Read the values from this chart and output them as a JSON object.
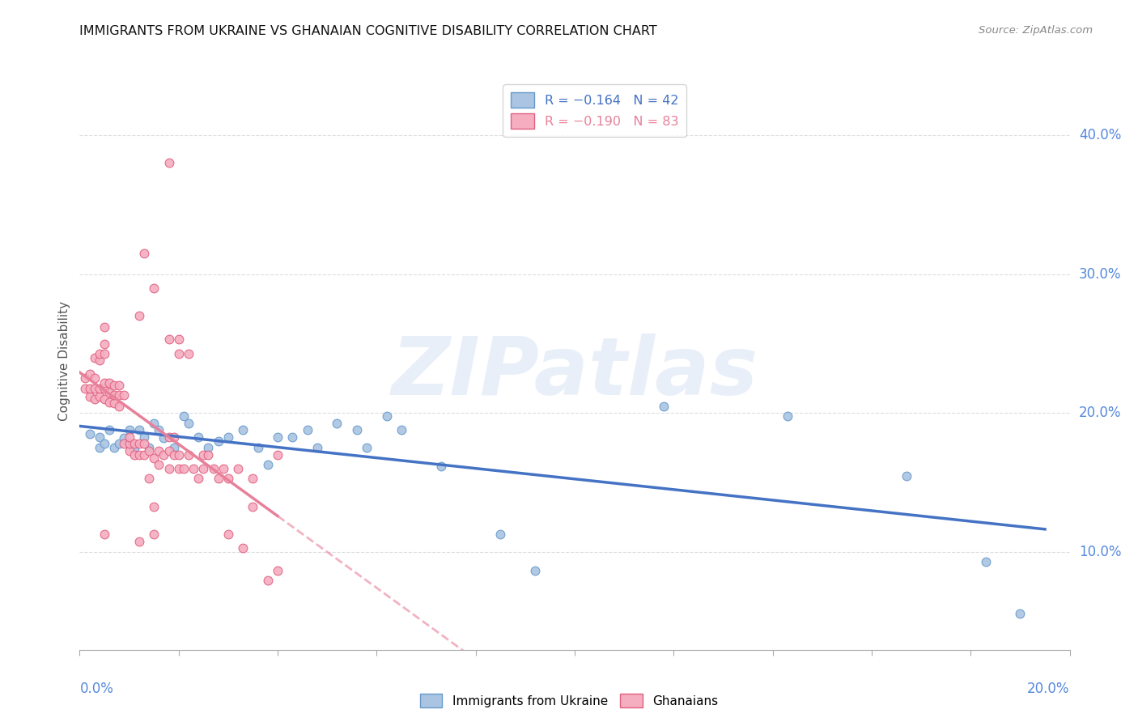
{
  "title": "IMMIGRANTS FROM UKRAINE VS GHANAIAN COGNITIVE DISABILITY CORRELATION CHART",
  "source": "Source: ZipAtlas.com",
  "ylabel": "Cognitive Disability",
  "xlim": [
    0.0,
    0.2
  ],
  "ylim": [
    0.03,
    0.445
  ],
  "ytick_vals": [
    0.1,
    0.2,
    0.3,
    0.4
  ],
  "xtick_vals": [
    0.0,
    0.02,
    0.04,
    0.06,
    0.08,
    0.1,
    0.12,
    0.14,
    0.16,
    0.18,
    0.2
  ],
  "ukraine_color": "#aac4e2",
  "ukraine_edge": "#6699cc",
  "ghana_color": "#f5adc0",
  "ghana_edge": "#e06080",
  "trend_ukraine_color": "#4472c4",
  "trend_ghana_color": "#e8809a",
  "watermark": "ZIPatlas",
  "ukraine_points": [
    [
      0.002,
      0.185
    ],
    [
      0.004,
      0.175
    ],
    [
      0.004,
      0.183
    ],
    [
      0.005,
      0.178
    ],
    [
      0.006,
      0.188
    ],
    [
      0.007,
      0.175
    ],
    [
      0.008,
      0.178
    ],
    [
      0.009,
      0.182
    ],
    [
      0.01,
      0.188
    ],
    [
      0.01,
      0.178
    ],
    [
      0.011,
      0.175
    ],
    [
      0.012,
      0.188
    ],
    [
      0.013,
      0.183
    ],
    [
      0.014,
      0.175
    ],
    [
      0.015,
      0.193
    ],
    [
      0.016,
      0.188
    ],
    [
      0.017,
      0.182
    ],
    [
      0.019,
      0.175
    ],
    [
      0.021,
      0.198
    ],
    [
      0.022,
      0.193
    ],
    [
      0.024,
      0.183
    ],
    [
      0.026,
      0.175
    ],
    [
      0.028,
      0.18
    ],
    [
      0.03,
      0.183
    ],
    [
      0.033,
      0.188
    ],
    [
      0.036,
      0.175
    ],
    [
      0.038,
      0.163
    ],
    [
      0.04,
      0.183
    ],
    [
      0.043,
      0.183
    ],
    [
      0.046,
      0.188
    ],
    [
      0.048,
      0.175
    ],
    [
      0.052,
      0.193
    ],
    [
      0.056,
      0.188
    ],
    [
      0.058,
      0.175
    ],
    [
      0.062,
      0.198
    ],
    [
      0.065,
      0.188
    ],
    [
      0.073,
      0.162
    ],
    [
      0.085,
      0.113
    ],
    [
      0.092,
      0.087
    ],
    [
      0.118,
      0.205
    ],
    [
      0.143,
      0.198
    ],
    [
      0.167,
      0.155
    ],
    [
      0.183,
      0.093
    ],
    [
      0.19,
      0.056
    ]
  ],
  "ghana_points": [
    [
      0.001,
      0.218
    ],
    [
      0.001,
      0.225
    ],
    [
      0.002,
      0.212
    ],
    [
      0.002,
      0.218
    ],
    [
      0.002,
      0.228
    ],
    [
      0.003,
      0.21
    ],
    [
      0.003,
      0.218
    ],
    [
      0.003,
      0.225
    ],
    [
      0.003,
      0.24
    ],
    [
      0.004,
      0.212
    ],
    [
      0.004,
      0.218
    ],
    [
      0.004,
      0.238
    ],
    [
      0.004,
      0.243
    ],
    [
      0.005,
      0.21
    ],
    [
      0.005,
      0.218
    ],
    [
      0.005,
      0.222
    ],
    [
      0.005,
      0.243
    ],
    [
      0.005,
      0.25
    ],
    [
      0.005,
      0.262
    ],
    [
      0.006,
      0.208
    ],
    [
      0.006,
      0.215
    ],
    [
      0.006,
      0.222
    ],
    [
      0.007,
      0.207
    ],
    [
      0.007,
      0.213
    ],
    [
      0.007,
      0.22
    ],
    [
      0.008,
      0.205
    ],
    [
      0.008,
      0.213
    ],
    [
      0.008,
      0.22
    ],
    [
      0.009,
      0.178
    ],
    [
      0.009,
      0.213
    ],
    [
      0.01,
      0.173
    ],
    [
      0.01,
      0.178
    ],
    [
      0.01,
      0.183
    ],
    [
      0.011,
      0.17
    ],
    [
      0.011,
      0.178
    ],
    [
      0.012,
      0.17
    ],
    [
      0.012,
      0.178
    ],
    [
      0.012,
      0.27
    ],
    [
      0.013,
      0.17
    ],
    [
      0.013,
      0.178
    ],
    [
      0.013,
      0.315
    ],
    [
      0.014,
      0.153
    ],
    [
      0.014,
      0.173
    ],
    [
      0.015,
      0.133
    ],
    [
      0.015,
      0.168
    ],
    [
      0.015,
      0.29
    ],
    [
      0.016,
      0.163
    ],
    [
      0.016,
      0.173
    ],
    [
      0.017,
      0.17
    ],
    [
      0.018,
      0.16
    ],
    [
      0.018,
      0.173
    ],
    [
      0.018,
      0.183
    ],
    [
      0.018,
      0.253
    ],
    [
      0.018,
      0.38
    ],
    [
      0.019,
      0.17
    ],
    [
      0.019,
      0.183
    ],
    [
      0.02,
      0.16
    ],
    [
      0.02,
      0.17
    ],
    [
      0.02,
      0.243
    ],
    [
      0.02,
      0.253
    ],
    [
      0.021,
      0.16
    ],
    [
      0.022,
      0.17
    ],
    [
      0.022,
      0.243
    ],
    [
      0.023,
      0.16
    ],
    [
      0.024,
      0.153
    ],
    [
      0.025,
      0.16
    ],
    [
      0.025,
      0.17
    ],
    [
      0.026,
      0.17
    ],
    [
      0.027,
      0.16
    ],
    [
      0.028,
      0.153
    ],
    [
      0.029,
      0.16
    ],
    [
      0.03,
      0.113
    ],
    [
      0.03,
      0.153
    ],
    [
      0.032,
      0.16
    ],
    [
      0.033,
      0.103
    ],
    [
      0.035,
      0.133
    ],
    [
      0.035,
      0.153
    ],
    [
      0.038,
      0.08
    ],
    [
      0.04,
      0.087
    ],
    [
      0.04,
      0.17
    ],
    [
      0.005,
      0.113
    ],
    [
      0.012,
      0.108
    ],
    [
      0.015,
      0.113
    ]
  ]
}
